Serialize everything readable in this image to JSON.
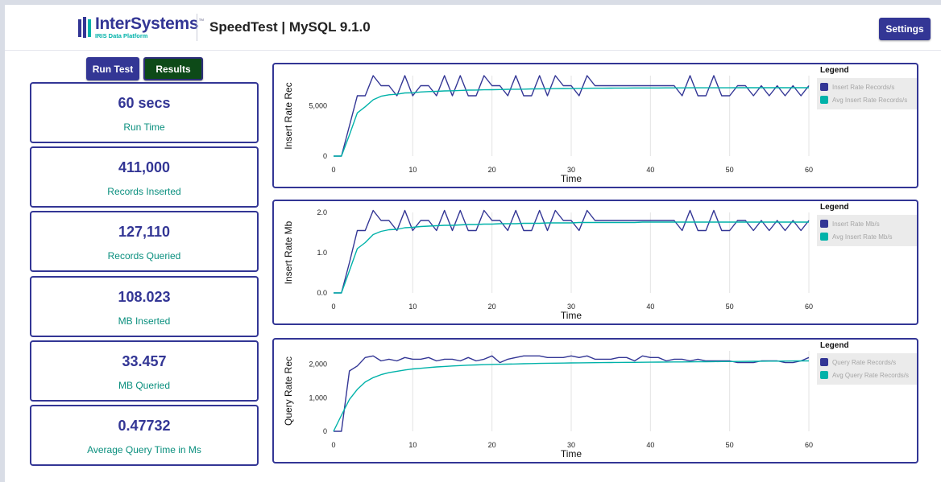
{
  "header": {
    "logo_word": "InterSystems",
    "logo_sub": "IRIS Data Platform",
    "title": "SpeedTest | MySQL 9.1.0",
    "settings_label": "Settings"
  },
  "actions": {
    "run_test_label": "Run Test",
    "results_label": "Results"
  },
  "colors": {
    "brand": "#333695",
    "teal": "#00b2a9",
    "results_bg": "#0d4a18"
  },
  "stats": [
    {
      "value": "60 secs",
      "label": "Run Time"
    },
    {
      "value": "411,000",
      "label": "Records Inserted"
    },
    {
      "value": "127,110",
      "label": "Records Queried"
    },
    {
      "value": "108.023",
      "label": "MB Inserted"
    },
    {
      "value": "33.457",
      "label": "MB Queried"
    },
    {
      "value": "0.47732",
      "label": "Average Query Time in Ms"
    }
  ],
  "chart_data": [
    {
      "type": "line",
      "xlabel": "Time",
      "ylabel": "Insert Rate Rec",
      "xlim": [
        0,
        60
      ],
      "ylim": [
        0,
        8000
      ],
      "xticks": [
        0,
        10,
        20,
        30,
        40,
        50,
        60
      ],
      "yticks": [
        0,
        5000
      ],
      "ytick_labels": [
        "0",
        "5,000"
      ],
      "grid": true,
      "legend_title": "Legend",
      "legend_position": "right",
      "x": [
        0,
        1,
        2,
        3,
        4,
        5,
        6,
        7,
        8,
        9,
        10,
        11,
        12,
        13,
        14,
        15,
        16,
        17,
        18,
        19,
        20,
        21,
        22,
        23,
        24,
        25,
        26,
        27,
        28,
        29,
        30,
        31,
        32,
        33,
        34,
        35,
        36,
        37,
        38,
        39,
        40,
        41,
        42,
        43,
        44,
        45,
        46,
        47,
        48,
        49,
        50,
        51,
        52,
        53,
        54,
        55,
        56,
        57,
        58,
        59,
        60
      ],
      "series": [
        {
          "name": "Insert Rate Records/s",
          "color": "#333695",
          "values": [
            0,
            0,
            3000,
            6000,
            6000,
            8000,
            7000,
            7000,
            6000,
            8000,
            6000,
            7000,
            7000,
            6000,
            8000,
            6000,
            8000,
            6000,
            6000,
            8000,
            7000,
            7000,
            6000,
            8000,
            6000,
            6000,
            8000,
            6000,
            8000,
            7000,
            7000,
            6000,
            8000,
            7000,
            7000,
            7000,
            7000,
            7000,
            7000,
            7000,
            7000,
            7000,
            7000,
            7000,
            6000,
            8000,
            6000,
            6000,
            8000,
            6000,
            6000,
            7000,
            7000,
            6000,
            7000,
            6000,
            7000,
            6000,
            7000,
            6000,
            7000
          ]
        },
        {
          "name": "Avg Insert Rate Records/s",
          "color": "#00b2a9",
          "values": [
            0,
            0,
            2100,
            4300,
            4900,
            5600,
            5950,
            6100,
            6150,
            6280,
            6300,
            6380,
            6420,
            6440,
            6480,
            6500,
            6530,
            6560,
            6570,
            6590,
            6600,
            6620,
            6640,
            6650,
            6660,
            6680,
            6690,
            6700,
            6710,
            6720,
            6730,
            6740,
            6745,
            6750,
            6755,
            6760,
            6765,
            6770,
            6772,
            6775,
            6778,
            6780,
            6782,
            6784,
            6786,
            6788,
            6790,
            6792,
            6793,
            6794,
            6795,
            6796,
            6797,
            6798,
            6799,
            6800,
            6800,
            6800,
            6800,
            6800,
            6800
          ]
        }
      ]
    },
    {
      "type": "line",
      "xlabel": "Time",
      "ylabel": "Insert Rate Mb",
      "xlim": [
        0,
        60
      ],
      "ylim": [
        0,
        2.0
      ],
      "xticks": [
        0,
        10,
        20,
        30,
        40,
        50,
        60
      ],
      "yticks": [
        0,
        1.0,
        2.0
      ],
      "ytick_labels": [
        "0.0",
        "1.0",
        "2.0"
      ],
      "grid": true,
      "legend_title": "Legend",
      "legend_position": "right",
      "x": [
        0,
        1,
        2,
        3,
        4,
        5,
        6,
        7,
        8,
        9,
        10,
        11,
        12,
        13,
        14,
        15,
        16,
        17,
        18,
        19,
        20,
        21,
        22,
        23,
        24,
        25,
        26,
        27,
        28,
        29,
        30,
        31,
        32,
        33,
        34,
        35,
        36,
        37,
        38,
        39,
        40,
        41,
        42,
        43,
        44,
        45,
        46,
        47,
        48,
        49,
        50,
        51,
        52,
        53,
        54,
        55,
        56,
        57,
        58,
        59,
        60
      ],
      "series": [
        {
          "name": "Insert Rate Mb/s",
          "color": "#333695",
          "values": [
            0,
            0,
            0.75,
            1.55,
            1.55,
            2.05,
            1.8,
            1.8,
            1.55,
            2.05,
            1.55,
            1.8,
            1.8,
            1.55,
            2.05,
            1.55,
            2.05,
            1.55,
            1.55,
            2.05,
            1.8,
            1.8,
            1.55,
            2.05,
            1.55,
            1.55,
            2.05,
            1.55,
            2.05,
            1.8,
            1.8,
            1.55,
            2.05,
            1.8,
            1.8,
            1.8,
            1.8,
            1.8,
            1.8,
            1.8,
            1.8,
            1.8,
            1.8,
            1.8,
            1.55,
            2.05,
            1.55,
            1.55,
            2.05,
            1.55,
            1.55,
            1.8,
            1.8,
            1.55,
            1.8,
            1.55,
            1.8,
            1.55,
            1.8,
            1.55,
            1.8
          ]
        },
        {
          "name": "Avg Insert Rate Mb/s",
          "color": "#00b2a9",
          "values": [
            0,
            0,
            0.55,
            1.1,
            1.25,
            1.45,
            1.53,
            1.57,
            1.58,
            1.62,
            1.63,
            1.65,
            1.66,
            1.67,
            1.68,
            1.68,
            1.69,
            1.7,
            1.7,
            1.71,
            1.71,
            1.72,
            1.72,
            1.72,
            1.73,
            1.73,
            1.73,
            1.74,
            1.74,
            1.74,
            1.74,
            1.75,
            1.75,
            1.75,
            1.75,
            1.75,
            1.75,
            1.75,
            1.75,
            1.76,
            1.76,
            1.76,
            1.76,
            1.76,
            1.76,
            1.76,
            1.76,
            1.76,
            1.76,
            1.76,
            1.76,
            1.76,
            1.76,
            1.76,
            1.76,
            1.76,
            1.76,
            1.76,
            1.76,
            1.76,
            1.76
          ]
        }
      ]
    },
    {
      "type": "line",
      "xlabel": "Time",
      "ylabel": "Query Rate Rec",
      "xlim": [
        0,
        60
      ],
      "ylim": [
        0,
        2400
      ],
      "xticks": [
        0,
        10,
        20,
        30,
        40,
        50,
        60
      ],
      "yticks": [
        0,
        1000,
        2000
      ],
      "ytick_labels": [
        "0",
        "1,000",
        "2,000"
      ],
      "grid": true,
      "legend_title": "Legend",
      "legend_position": "right",
      "x": [
        0,
        1,
        2,
        3,
        4,
        5,
        6,
        7,
        8,
        9,
        10,
        11,
        12,
        13,
        14,
        15,
        16,
        17,
        18,
        19,
        20,
        21,
        22,
        23,
        24,
        25,
        26,
        27,
        28,
        29,
        30,
        31,
        32,
        33,
        34,
        35,
        36,
        37,
        38,
        39,
        40,
        41,
        42,
        43,
        44,
        45,
        46,
        47,
        48,
        49,
        50,
        51,
        52,
        53,
        54,
        55,
        56,
        57,
        58,
        59,
        60
      ],
      "series": [
        {
          "name": "Query Rate Records/s",
          "color": "#333695",
          "values": [
            0,
            0,
            1800,
            1950,
            2200,
            2250,
            2100,
            2150,
            2100,
            2200,
            2150,
            2150,
            2200,
            2100,
            2150,
            2150,
            2100,
            2200,
            2100,
            2150,
            2250,
            2050,
            2150,
            2200,
            2250,
            2250,
            2250,
            2200,
            2200,
            2200,
            2250,
            2200,
            2250,
            2150,
            2150,
            2150,
            2200,
            2200,
            2100,
            2250,
            2200,
            2200,
            2100,
            2150,
            2150,
            2100,
            2150,
            2100,
            2100,
            2100,
            2100,
            2050,
            2050,
            2050,
            2100,
            2100,
            2100,
            2050,
            2050,
            2100,
            2200
          ]
        },
        {
          "name": "Avg Query Rate Records/s",
          "color": "#00b2a9",
          "values": [
            0,
            480,
            950,
            1250,
            1470,
            1600,
            1690,
            1750,
            1790,
            1830,
            1860,
            1880,
            1900,
            1920,
            1935,
            1950,
            1962,
            1972,
            1980,
            1988,
            1995,
            2000,
            2005,
            2010,
            2015,
            2020,
            2025,
            2030,
            2033,
            2036,
            2040,
            2042,
            2045,
            2048,
            2050,
            2052,
            2054,
            2056,
            2058,
            2060,
            2062,
            2064,
            2066,
            2068,
            2070,
            2072,
            2074,
            2076,
            2078,
            2080,
            2082,
            2084,
            2086,
            2088,
            2090,
            2092,
            2094,
            2096,
            2098,
            2100,
            2100
          ]
        }
      ]
    }
  ]
}
